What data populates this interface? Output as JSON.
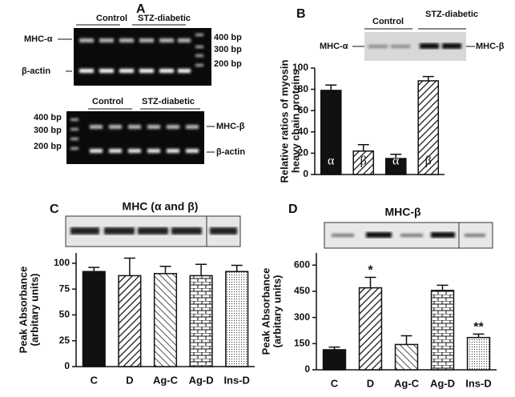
{
  "gels": {
    "a": {
      "letter": "A",
      "top": {
        "groups": [
          "Control",
          "STZ-diabetic"
        ],
        "left_labels": [
          "MHC-α",
          "β-actin"
        ],
        "right_labels": [
          "400 bp",
          "300 bp",
          "200 bp"
        ]
      },
      "bottom": {
        "groups": [
          "Control",
          "STZ-diabetic"
        ],
        "left_labels": [
          "400 bp",
          "300 bp",
          "200 bp"
        ],
        "right_labels": [
          "MHC-β",
          "β-actin"
        ]
      }
    },
    "b": {
      "letter": "B",
      "groups": [
        "Control",
        "STZ-diabetic"
      ],
      "left_label": "MHC-α",
      "right_label": "MHC-β"
    }
  },
  "chart_data": [
    {
      "type": "bar",
      "ylabel": [
        "Relative ratios of myosin",
        "heavy chain proteins"
      ],
      "categories": [
        null,
        null,
        null,
        null
      ],
      "values": [
        79,
        22,
        15,
        88
      ],
      "errors": [
        5,
        6,
        4,
        4
      ],
      "bar_labels": [
        "α",
        "β",
        "α",
        "β"
      ],
      "patterns": [
        "solid",
        "diag",
        "solid",
        "diag"
      ],
      "color": "#111111",
      "ylim": [
        0,
        100
      ],
      "yticks": [
        0,
        20,
        40,
        60,
        80,
        100
      ]
    },
    {
      "type": "bar",
      "letter": "C",
      "title": "MHC (α and β)",
      "ylabel": [
        "Peak Absorbance",
        "(arbitary units)"
      ],
      "categories": [
        "C",
        "D",
        "Ag-C",
        "Ag-D",
        "Ins-D"
      ],
      "values": [
        92,
        88,
        90,
        88,
        92
      ],
      "errors": [
        4,
        17,
        7,
        11,
        6
      ],
      "patterns": [
        "solid",
        "diag",
        "diag2",
        "brick",
        "dots"
      ],
      "color": "#111111",
      "ylim": [
        0,
        110
      ],
      "yticks": [
        0,
        25,
        50,
        75,
        100
      ]
    },
    {
      "type": "bar",
      "letter": "D",
      "title": "MHC-β",
      "ylabel": [
        "Peak Absorbance",
        "(arbitary units)"
      ],
      "categories": [
        "C",
        "D",
        "Ag-C",
        "Ag-D",
        "Ins-D"
      ],
      "values": [
        115,
        470,
        145,
        455,
        185
      ],
      "errors": [
        15,
        60,
        50,
        30,
        20
      ],
      "patterns": [
        "solid",
        "diag",
        "diag2",
        "brick",
        "dots"
      ],
      "color": "#111111",
      "annotations": [
        {
          "text": "*",
          "index": 1
        },
        {
          "text": "**",
          "index": 4
        }
      ],
      "ylim": [
        0,
        670
      ],
      "yticks": [
        0,
        150,
        300,
        450,
        600
      ]
    }
  ]
}
